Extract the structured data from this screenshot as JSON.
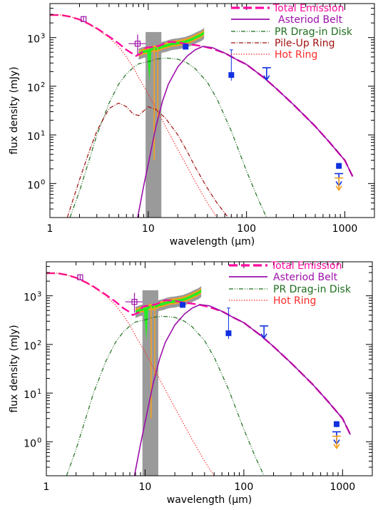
{
  "colors": {
    "total": "#ff0aa0",
    "belt": "#9b10a8",
    "pr": "#1e6e1e",
    "pileup": "#a01010",
    "hot": "#ff2a2a",
    "blue": "#1030e0",
    "orange": "#f6a01e",
    "green": "#22ee22",
    "grey": "#9a9a9a",
    "text": "#000000"
  },
  "chart_data": [
    {
      "type": "line",
      "title": "",
      "xlabel": "wavelength (µm)",
      "ylabel": "flux density (mJy)",
      "xscale": "log",
      "yscale": "log",
      "xlim": [
        1,
        2000
      ],
      "ylim": [
        0.2,
        5000
      ],
      "xticks": [
        {
          "v": 1,
          "label": "1"
        },
        {
          "v": 10,
          "label": "10"
        },
        {
          "v": 100,
          "label": "100"
        },
        {
          "v": 1000,
          "label": "1000"
        }
      ],
      "yticks": [
        {
          "v": 1,
          "label": "10",
          "exp": "0"
        },
        {
          "v": 10,
          "label": "10",
          "exp": "1"
        },
        {
          "v": 100,
          "label": "10",
          "exp": "2"
        },
        {
          "v": 1000,
          "label": "10",
          "exp": "3"
        }
      ],
      "legend_position": "top-right",
      "series": [
        {
          "name": "Total Emission",
          "style": "dashed",
          "color_key": "total",
          "x": [
            1,
            1.3,
            1.6,
            2,
            2.5,
            3,
            4,
            5,
            6,
            7,
            7.5,
            8.5,
            9.5,
            11,
            13,
            16,
            20,
            25,
            30,
            36,
            45,
            60,
            80,
            100,
            150,
            200,
            300,
            500,
            700,
            1000,
            1200
          ],
          "y": [
            2900,
            2900,
            2700,
            2350,
            1900,
            1550,
            1050,
            760,
            560,
            460,
            420,
            480,
            620,
            640,
            680,
            820,
            800,
            730,
            700,
            660,
            590,
            480,
            350,
            280,
            150,
            90,
            42,
            15,
            7,
            3,
            1.4
          ]
        },
        {
          "name": "Asteriod Belt",
          "style": "solid",
          "color_key": "belt",
          "x": [
            7.8,
            9,
            10,
            12,
            14,
            16,
            20,
            25,
            30,
            36,
            45,
            60,
            80,
            100,
            150,
            200,
            300,
            500,
            700,
            1000,
            1200
          ],
          "y": [
            0.2,
            0.9,
            2.5,
            15,
            50,
            110,
            250,
            420,
            560,
            660,
            620,
            480,
            350,
            280,
            150,
            90,
            42,
            15,
            7,
            3,
            1.4
          ]
        },
        {
          "name": "PR Drag-in Disk",
          "style": "dashdotdot",
          "color_key": "pr",
          "x": [
            1.6,
            2,
            2.5,
            3,
            4,
            5,
            6,
            7,
            8,
            10,
            12,
            15,
            20,
            25,
            30,
            40,
            50,
            70,
            100,
            130,
            160
          ],
          "y": [
            0.2,
            0.7,
            3,
            10,
            45,
            110,
            180,
            240,
            290,
            320,
            360,
            380,
            360,
            300,
            230,
            120,
            55,
            12,
            1.8,
            0.5,
            0.2
          ]
        },
        {
          "name": "Pile-Up Ring",
          "style": "dashdot",
          "color_key": "pileup",
          "x": [
            1.5,
            2,
            2.5,
            3,
            4,
            5,
            6,
            7,
            8,
            10,
            12,
            15,
            20,
            25,
            30,
            40,
            50,
            65
          ],
          "y": [
            0.2,
            1.2,
            4.5,
            12,
            35,
            45,
            38,
            27,
            25,
            38,
            33,
            22,
            10,
            4.5,
            2.2,
            0.8,
            0.4,
            0.2
          ]
        },
        {
          "name": "Hot Ring",
          "style": "dotted",
          "color_key": "hot",
          "x": [
            1,
            1.3,
            1.6,
            2,
            2.5,
            3,
            4,
            5,
            6,
            7,
            8,
            10,
            12,
            15,
            20,
            25,
            30,
            40,
            50
          ],
          "y": [
            2900,
            2900,
            2700,
            2350,
            1900,
            1500,
            1000,
            650,
            400,
            250,
            150,
            70,
            35,
            15,
            5,
            2.2,
            1.1,
            0.4,
            0.2
          ]
        }
      ],
      "observations": {
        "open_points": [
          {
            "x": 2.2,
            "y": 2400,
            "yerr": [
              2100,
              2650
            ],
            "xerr": null
          },
          {
            "x": 7.8,
            "y": 750,
            "yerr": [
              450,
              1150
            ],
            "xerr": [
              6.3,
              9.4
            ]
          }
        ],
        "blue_points": [
          {
            "x": 24,
            "y": 650,
            "yerr": [
              580,
              720
            ]
          },
          {
            "x": 70,
            "y": 170,
            "yerr": [
              130,
              560
            ]
          },
          {
            "x": 870,
            "y": 2.3,
            "yerr": [
              2.0,
              2.6
            ]
          }
        ],
        "blue_upper_limits": [
          {
            "x": 160,
            "y": 240
          },
          {
            "x": 870,
            "y": 1.6
          }
        ],
        "orange_upper_limits": [
          {
            "x": 870,
            "y": 1.3
          }
        ],
        "spectrum": {
          "x": [
            8,
            9,
            9.7,
            10.5,
            11,
            11.5,
            12,
            13,
            14,
            15,
            16,
            17,
            18,
            20,
            22,
            24,
            26,
            28,
            30,
            32,
            33,
            34,
            35,
            36,
            37
          ],
          "y": [
            500,
            550,
            560,
            600,
            620,
            640,
            620,
            650,
            700,
            720,
            750,
            780,
            800,
            820,
            850,
            880,
            930,
            990,
            1060,
            1130,
            1160,
            1190,
            1230,
            1280,
            1350
          ]
        }
      }
    },
    {
      "type": "line",
      "title": "",
      "xlabel": "wavelength (µm)",
      "ylabel": "flux density (mJy)",
      "xscale": "log",
      "yscale": "log",
      "xlim": [
        1,
        2000
      ],
      "ylim": [
        0.2,
        5000
      ],
      "xticks": [
        {
          "v": 1,
          "label": "1"
        },
        {
          "v": 10,
          "label": "10"
        },
        {
          "v": 100,
          "label": "100"
        },
        {
          "v": 1000,
          "label": "1000"
        }
      ],
      "yticks": [
        {
          "v": 1,
          "label": "10",
          "exp": "0"
        },
        {
          "v": 10,
          "label": "10",
          "exp": "1"
        },
        {
          "v": 100,
          "label": "10",
          "exp": "2"
        },
        {
          "v": 1000,
          "label": "10",
          "exp": "3"
        }
      ],
      "legend_position": "top-right",
      "series": [
        {
          "name": "Total Emission",
          "style": "dashed",
          "color_key": "total",
          "x": [
            1,
            1.3,
            1.6,
            2,
            2.5,
            3,
            4,
            5,
            6,
            7,
            7.5,
            8.5,
            9.5,
            11,
            13,
            16,
            20,
            25,
            30,
            36,
            45,
            60,
            80,
            100,
            150,
            200,
            300,
            500,
            700,
            1000,
            1200
          ],
          "y": [
            2900,
            2900,
            2700,
            2350,
            1900,
            1550,
            1050,
            760,
            560,
            460,
            400,
            450,
            600,
            630,
            670,
            810,
            790,
            720,
            690,
            650,
            580,
            480,
            350,
            280,
            150,
            90,
            42,
            15,
            7,
            3,
            1.4
          ]
        },
        {
          "name": "Asteriod Belt",
          "style": "solid",
          "color_key": "belt",
          "x": [
            7.8,
            9,
            10,
            12,
            14,
            16,
            20,
            25,
            30,
            36,
            45,
            60,
            80,
            100,
            150,
            200,
            300,
            500,
            700,
            1000,
            1200
          ],
          "y": [
            0.2,
            0.9,
            2.5,
            15,
            50,
            110,
            250,
            420,
            560,
            660,
            620,
            480,
            350,
            280,
            150,
            90,
            42,
            15,
            7,
            3,
            1.4
          ]
        },
        {
          "name": "PR Drag-in Disk",
          "style": "dashdotdot",
          "color_key": "pr",
          "x": [
            1.6,
            2,
            2.5,
            3,
            4,
            5,
            6,
            7,
            8,
            10,
            12,
            15,
            20,
            25,
            30,
            40,
            50,
            70,
            100,
            130,
            160
          ],
          "y": [
            0.2,
            0.7,
            3,
            10,
            45,
            110,
            180,
            240,
            290,
            320,
            360,
            380,
            360,
            300,
            230,
            120,
            55,
            12,
            1.8,
            0.5,
            0.2
          ]
        },
        {
          "name": "Hot Ring",
          "style": "dotted",
          "color_key": "hot",
          "x": [
            1,
            1.3,
            1.6,
            2,
            2.5,
            3,
            4,
            5,
            6,
            7,
            8,
            10,
            12,
            15,
            20,
            25,
            30,
            40,
            50
          ],
          "y": [
            2900,
            2900,
            2700,
            2350,
            1900,
            1500,
            1000,
            650,
            400,
            250,
            150,
            70,
            35,
            15,
            5,
            2.2,
            1.1,
            0.4,
            0.2
          ]
        }
      ],
      "observations": {
        "open_points": [
          {
            "x": 2.2,
            "y": 2400,
            "yerr": [
              2100,
              2650
            ],
            "xerr": null
          },
          {
            "x": 7.8,
            "y": 750,
            "yerr": [
              450,
              1150
            ],
            "xerr": [
              6.3,
              9.4
            ]
          }
        ],
        "blue_points": [
          {
            "x": 24,
            "y": 650,
            "yerr": [
              580,
              720
            ]
          },
          {
            "x": 70,
            "y": 170,
            "yerr": [
              130,
              560
            ]
          },
          {
            "x": 870,
            "y": 2.3,
            "yerr": [
              2.0,
              2.6
            ]
          }
        ],
        "blue_upper_limits": [
          {
            "x": 160,
            "y": 240
          },
          {
            "x": 870,
            "y": 1.6
          }
        ],
        "orange_upper_limits": [
          {
            "x": 870,
            "y": 1.3
          }
        ],
        "spectrum": {
          "x": [
            8,
            9,
            9.7,
            10.5,
            11,
            11.5,
            12,
            13,
            14,
            15,
            16,
            17,
            18,
            20,
            22,
            24,
            26,
            28,
            30,
            32,
            33,
            34,
            35,
            36,
            37
          ],
          "y": [
            500,
            550,
            560,
            600,
            620,
            640,
            620,
            650,
            700,
            720,
            750,
            780,
            800,
            820,
            850,
            880,
            930,
            990,
            1060,
            1130,
            1160,
            1190,
            1230,
            1280,
            1350
          ]
        }
      }
    }
  ]
}
